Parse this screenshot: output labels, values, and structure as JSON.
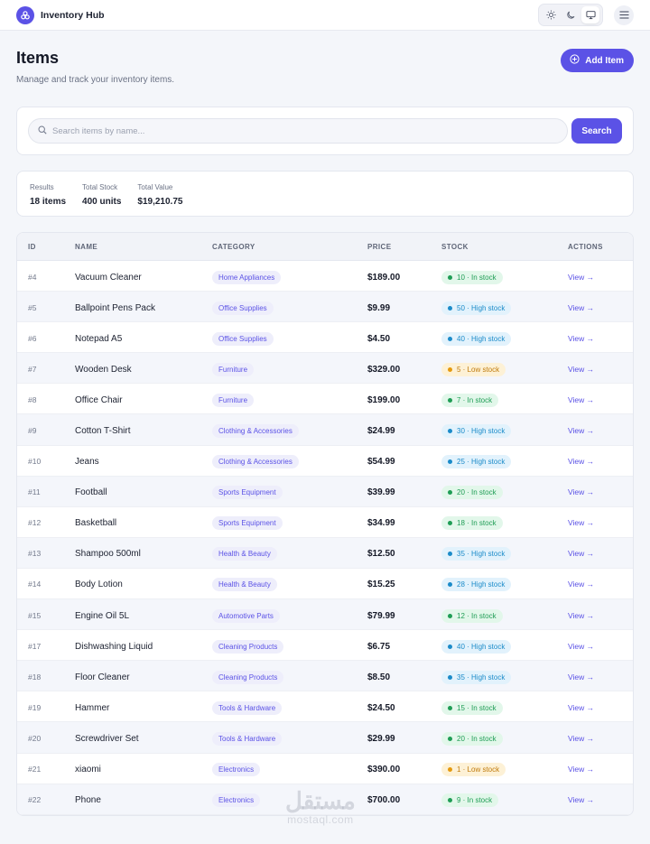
{
  "app": {
    "title": "Inventory Hub"
  },
  "theme": {
    "options": [
      "sun-icon",
      "moon-icon",
      "monitor-icon"
    ],
    "active": "monitor-icon"
  },
  "page": {
    "title": "Items",
    "subtitle": "Manage and track your inventory items.",
    "add_label": "Add Item"
  },
  "search": {
    "placeholder": "Search items by name...",
    "value": "",
    "button_label": "Search"
  },
  "stats": {
    "results_label": "Results",
    "results_value": "18 items",
    "stock_label": "Total Stock",
    "stock_value": "400 units",
    "value_label": "Total Value",
    "value_value": "$19,210.75"
  },
  "table": {
    "headers": {
      "id": "ID",
      "name": "NAME",
      "category": "CATEGORY",
      "price": "PRICE",
      "stock": "STOCK",
      "actions": "ACTIONS"
    },
    "rows": [
      {
        "id": "#4",
        "name": "Vacuum Cleaner",
        "category": "Home Appliances",
        "price": "$189.00",
        "stock": "10 · In stock",
        "status": "in",
        "action": "View →"
      },
      {
        "id": "#5",
        "name": "Ballpoint Pens Pack",
        "category": "Office Supplies",
        "price": "$9.99",
        "stock": "50 · High stock",
        "status": "high",
        "action": "View →"
      },
      {
        "id": "#6",
        "name": "Notepad A5",
        "category": "Office Supplies",
        "price": "$4.50",
        "stock": "40 · High stock",
        "status": "high",
        "action": "View →"
      },
      {
        "id": "#7",
        "name": "Wooden Desk",
        "category": "Furniture",
        "price": "$329.00",
        "stock": "5 · Low stock",
        "status": "low",
        "action": "View →"
      },
      {
        "id": "#8",
        "name": "Office Chair",
        "category": "Furniture",
        "price": "$199.00",
        "stock": "7 · In stock",
        "status": "in",
        "action": "View →"
      },
      {
        "id": "#9",
        "name": "Cotton T-Shirt",
        "category": "Clothing & Accessories",
        "price": "$24.99",
        "stock": "30 · High stock",
        "status": "high",
        "action": "View →"
      },
      {
        "id": "#10",
        "name": "Jeans",
        "category": "Clothing & Accessories",
        "price": "$54.99",
        "stock": "25 · High stock",
        "status": "high",
        "action": "View →"
      },
      {
        "id": "#11",
        "name": "Football",
        "category": "Sports Equipment",
        "price": "$39.99",
        "stock": "20 · In stock",
        "status": "in",
        "action": "View →"
      },
      {
        "id": "#12",
        "name": "Basketball",
        "category": "Sports Equipment",
        "price": "$34.99",
        "stock": "18 · In stock",
        "status": "in",
        "action": "View →"
      },
      {
        "id": "#13",
        "name": "Shampoo 500ml",
        "category": "Health & Beauty",
        "price": "$12.50",
        "stock": "35 · High stock",
        "status": "high",
        "action": "View →"
      },
      {
        "id": "#14",
        "name": "Body Lotion",
        "category": "Health & Beauty",
        "price": "$15.25",
        "stock": "28 · High stock",
        "status": "high",
        "action": "View →"
      },
      {
        "id": "#15",
        "name": "Engine Oil 5L",
        "category": "Automotive Parts",
        "price": "$79.99",
        "stock": "12 · In stock",
        "status": "in",
        "action": "View →"
      },
      {
        "id": "#17",
        "name": "Dishwashing Liquid",
        "category": "Cleaning Products",
        "price": "$6.75",
        "stock": "40 · High stock",
        "status": "high",
        "action": "View →"
      },
      {
        "id": "#18",
        "name": "Floor Cleaner",
        "category": "Cleaning Products",
        "price": "$8.50",
        "stock": "35 · High stock",
        "status": "high",
        "action": "View →"
      },
      {
        "id": "#19",
        "name": "Hammer",
        "category": "Tools & Hardware",
        "price": "$24.50",
        "stock": "15 · In stock",
        "status": "in",
        "action": "View →"
      },
      {
        "id": "#20",
        "name": "Screwdriver Set",
        "category": "Tools & Hardware",
        "price": "$29.99",
        "stock": "20 · In stock",
        "status": "in",
        "action": "View →"
      },
      {
        "id": "#21",
        "name": "xiaomi",
        "category": "Electronics",
        "price": "$390.00",
        "stock": "1 · Low stock",
        "status": "low",
        "action": "View →"
      },
      {
        "id": "#22",
        "name": "Phone",
        "category": "Electronics",
        "price": "$700.00",
        "stock": "9 · In stock",
        "status": "in",
        "action": "View →"
      }
    ]
  },
  "colors": {
    "accent": "#5b52e6",
    "in_stock": "#1f9d55",
    "high_stock": "#1b8bc9",
    "low_stock": "#e59a0e"
  },
  "watermark": {
    "main": "مستقل",
    "sub": "mostaql.com"
  }
}
